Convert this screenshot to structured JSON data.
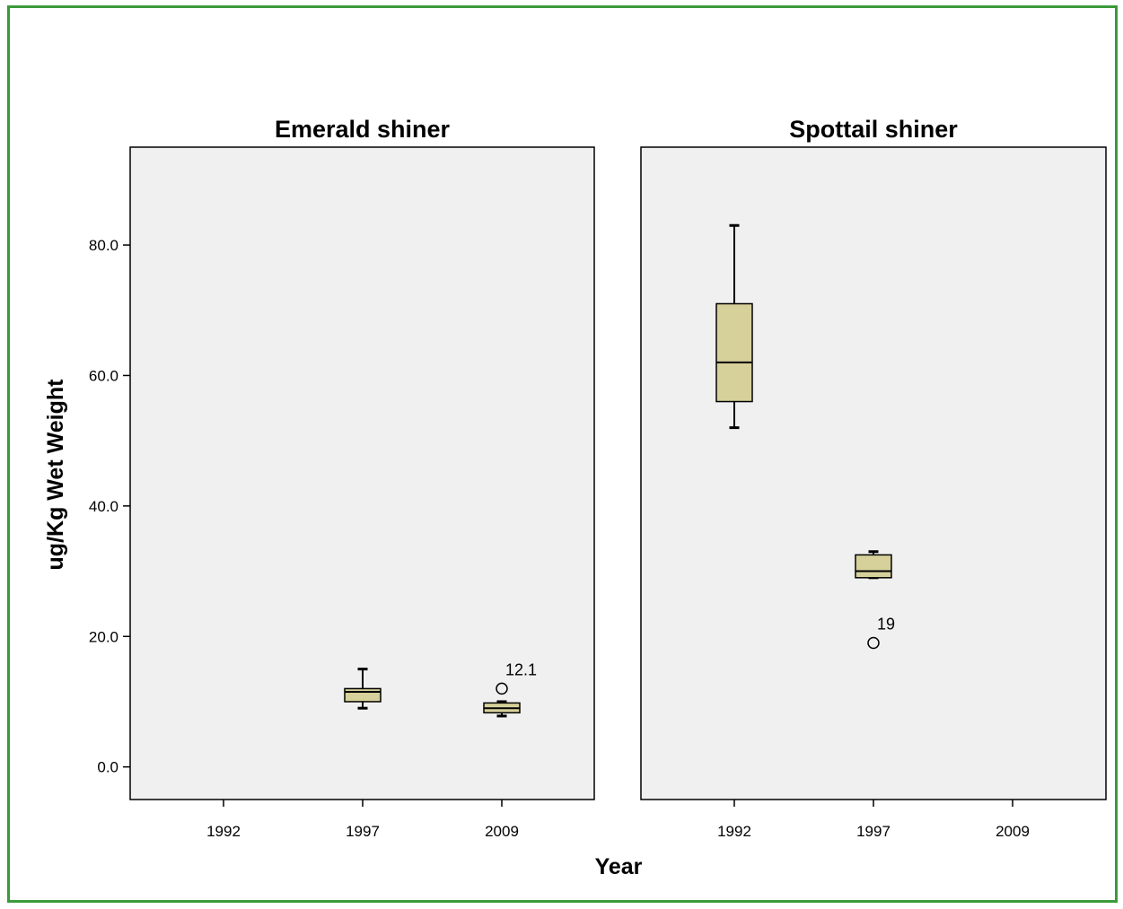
{
  "chart_data": {
    "type": "box",
    "xlabel": "Year",
    "ylabel": "ug/Kg Wet Weight",
    "categories": [
      "1992",
      "1997",
      "2009"
    ],
    "y_ticks": [
      "0.0",
      "20.0",
      "40.0",
      "60.0",
      "80.0"
    ],
    "ylim": [
      -5,
      95
    ],
    "grid": false,
    "colors": {
      "frame": "#3a9a3a",
      "panel_bg": "#f0f0f0",
      "box_fill": "#d6d09a",
      "stroke": "#000000"
    },
    "panels": [
      {
        "title": "Emerald shiner",
        "boxes": [
          {
            "category": "1997",
            "min": 9,
            "q1": 10,
            "median": 11.5,
            "q3": 12,
            "max": 15
          },
          {
            "category": "2009",
            "min": 7.8,
            "q1": 8.3,
            "median": 9,
            "q3": 9.8,
            "max": 10
          },
          null
        ],
        "outliers": [
          {
            "category": "2009",
            "value": 12,
            "label": "12.1"
          }
        ]
      },
      {
        "title": "Spottail shiner",
        "boxes": [
          {
            "category": "1992",
            "min": 52,
            "q1": 56,
            "median": 62,
            "q3": 71,
            "max": 83
          },
          {
            "category": "1997",
            "min": 29,
            "q1": 29,
            "median": 30,
            "q3": 32.5,
            "max": 33
          }
        ],
        "outliers": [
          {
            "category": "1997",
            "value": 19,
            "label": "19"
          }
        ]
      }
    ]
  }
}
